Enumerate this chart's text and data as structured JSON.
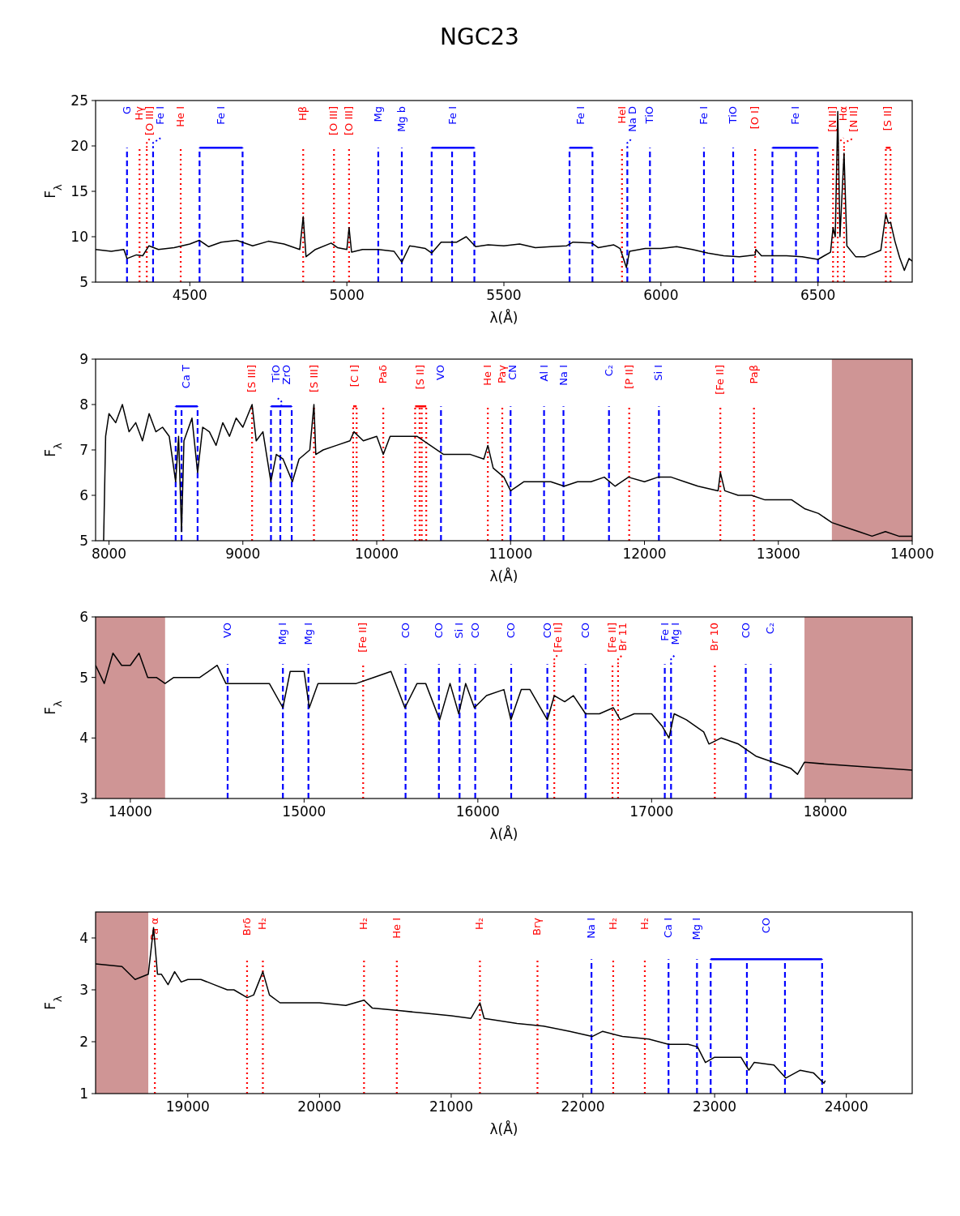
{
  "chart_data": [
    {
      "type": "line",
      "title": "NGC23",
      "xlabel": "λ(Å)",
      "ylabel": "F$_{λ}$",
      "xlim": [
        4200,
        6800
      ],
      "xticks": [
        4500,
        5000,
        5500,
        6000,
        6500
      ],
      "ylim": [
        5,
        25
      ],
      "yticks": [
        5,
        10,
        15,
        20,
        25
      ],
      "x": [
        4200,
        4250,
        4290,
        4300,
        4330,
        4350,
        4370,
        4400,
        4450,
        4500,
        4530,
        4560,
        4600,
        4650,
        4700,
        4750,
        4800,
        4850,
        4861,
        4870,
        4900,
        4950,
        4970,
        5000,
        5007,
        5015,
        5050,
        5100,
        5150,
        5175,
        5200,
        5250,
        5270,
        5300,
        5350,
        5380,
        5410,
        5450,
        5500,
        5550,
        5600,
        5650,
        5700,
        5720,
        5780,
        5800,
        5850,
        5870,
        5890,
        5900,
        5950,
        6000,
        6050,
        6100,
        6150,
        6200,
        6250,
        6300,
        6302,
        6320,
        6400,
        6450,
        6500,
        6520,
        6540,
        6548,
        6555,
        6563,
        6570,
        6583,
        6592,
        6620,
        6650,
        6700,
        6716,
        6724,
        6731,
        6745,
        6760,
        6775,
        6790,
        6800
      ],
      "series": [
        {
          "color": "#000000",
          "values": [
            8.6,
            8.4,
            8.6,
            7.6,
            8.0,
            7.9,
            9.0,
            8.6,
            8.8,
            9.2,
            9.6,
            8.9,
            9.4,
            9.6,
            9.0,
            9.5,
            9.2,
            8.6,
            12.2,
            7.8,
            8.6,
            9.3,
            8.8,
            8.6,
            11.0,
            8.3,
            8.6,
            8.6,
            8.4,
            7.2,
            9.0,
            8.7,
            8.2,
            9.4,
            9.4,
            10.0,
            8.9,
            9.1,
            9.0,
            9.2,
            8.8,
            8.9,
            9.0,
            9.4,
            9.3,
            8.8,
            9.1,
            8.7,
            6.6,
            8.4,
            8.7,
            8.7,
            8.9,
            8.6,
            8.2,
            7.9,
            7.8,
            8.0,
            8.6,
            7.9,
            7.9,
            7.8,
            7.5,
            7.9,
            8.3,
            11.0,
            10.0,
            23.8,
            10.0,
            19.2,
            9.0,
            7.8,
            7.8,
            8.5,
            12.5,
            11.5,
            11.6,
            9.5,
            7.7,
            6.3,
            7.6,
            7.3
          ]
        }
      ],
      "ref_lines": [
        {
          "axis": "x",
          "value": 4300,
          "label": "G",
          "color": "#0000ff",
          "line_style": "dashed"
        },
        {
          "axis": "x",
          "value": 4340,
          "label": "Hγ",
          "color": "#ff0000",
          "line_style": "dotted"
        },
        {
          "axis": "x",
          "value": 4363,
          "label": "[O III]",
          "color": "#ff0000",
          "line_style": "dotted"
        },
        {
          "axis": "x",
          "value": 4383,
          "label": "Fe I",
          "color": "#0000ff",
          "line_style": "dashed"
        },
        {
          "axis": "x",
          "value": 4471,
          "label": "He I",
          "color": "#ff0000",
          "line_style": "dotted"
        },
        {
          "axis": "x",
          "value": 4531,
          "label": "Fe I",
          "color": "#0000ff",
          "line_style": "dashed"
        },
        {
          "axis": "x",
          "value": 4668,
          "label": null,
          "color": "#0000ff",
          "line_style": "dashed"
        },
        {
          "axis": "x",
          "value": 4861,
          "label": "Hβ",
          "color": "#ff0000",
          "line_style": "dotted"
        },
        {
          "axis": "x",
          "value": 4959,
          "label": "[O III]",
          "color": "#ff0000",
          "line_style": "dotted"
        },
        {
          "axis": "x",
          "value": 5007,
          "label": "[O III]",
          "color": "#ff0000",
          "line_style": "dotted"
        },
        {
          "axis": "x",
          "value": 5100,
          "label": "Mg",
          "color": "#0000ff",
          "line_style": "dashed"
        },
        {
          "axis": "x",
          "value": 5175,
          "label": "Mg b",
          "color": "#0000ff",
          "line_style": "dashed"
        },
        {
          "axis": "x",
          "value": 5270,
          "label": "Fe I",
          "color": "#0000ff",
          "line_style": "dashed"
        },
        {
          "axis": "x",
          "value": 5335,
          "label": null,
          "color": "#0000ff",
          "line_style": "dashed"
        },
        {
          "axis": "x",
          "value": 5406,
          "label": null,
          "color": "#0000ff",
          "line_style": "dashed"
        },
        {
          "axis": "x",
          "value": 5709,
          "label": "Fe I",
          "color": "#0000ff",
          "line_style": "dashed"
        },
        {
          "axis": "x",
          "value": 5782,
          "label": null,
          "color": "#0000ff",
          "line_style": "dashed"
        },
        {
          "axis": "x",
          "value": 5876,
          "label": "HeI",
          "color": "#ff0000",
          "line_style": "dotted"
        },
        {
          "axis": "x",
          "value": 5893,
          "label": "Na D",
          "color": "#0000ff",
          "line_style": "dashed"
        },
        {
          "axis": "x",
          "value": 5965,
          "label": "TiO",
          "color": "#0000ff",
          "line_style": "dashed"
        },
        {
          "axis": "x",
          "value": 6137,
          "label": "Fe I",
          "color": "#0000ff",
          "line_style": "dashed"
        },
        {
          "axis": "x",
          "value": 6230,
          "label": "TiO",
          "color": "#0000ff",
          "line_style": "dashed"
        },
        {
          "axis": "x",
          "value": 6300,
          "label": "[O I]",
          "color": "#ff0000",
          "line_style": "dotted"
        },
        {
          "axis": "x",
          "value": 6355,
          "label": "Fe I",
          "color": "#0000ff",
          "line_style": "dashed"
        },
        {
          "axis": "x",
          "value": 6430,
          "label": null,
          "color": "#0000ff",
          "line_style": "dashed"
        },
        {
          "axis": "x",
          "value": 6500,
          "label": null,
          "color": "#0000ff",
          "line_style": "dashed"
        },
        {
          "axis": "x",
          "value": 6548,
          "label": "[N II]",
          "color": "#ff0000",
          "line_style": "dotted"
        },
        {
          "axis": "x",
          "value": 6563,
          "label": "Hα",
          "color": "#ff0000",
          "line_style": "dotted"
        },
        {
          "axis": "x",
          "value": 6583,
          "label": "[N II]",
          "color": "#ff0000",
          "line_style": "dotted"
        },
        {
          "axis": "x",
          "value": 6716,
          "label": "[S II]",
          "color": "#ff0000",
          "line_style": "dotted"
        },
        {
          "axis": "x",
          "value": 6731,
          "label": null,
          "color": "#ff0000",
          "line_style": "dotted"
        }
      ]
    },
    {
      "type": "line",
      "xlabel": "λ(Å)",
      "ylabel": "F$_{λ}$",
      "xlim": [
        7900,
        14000
      ],
      "xticks": [
        8000,
        9000,
        10000,
        11000,
        12000,
        13000,
        14000
      ],
      "ylim": [
        5,
        9
      ],
      "yticks": [
        5,
        6,
        7,
        8,
        9
      ],
      "x": [
        7960,
        7975,
        8000,
        8050,
        8100,
        8150,
        8200,
        8250,
        8300,
        8350,
        8400,
        8450,
        8498,
        8520,
        8542,
        8560,
        8620,
        8662,
        8700,
        8750,
        8800,
        8850,
        8900,
        8950,
        9000,
        9069,
        9100,
        9150,
        9209,
        9250,
        9300,
        9370,
        9420,
        9500,
        9531,
        9545,
        9600,
        9700,
        9800,
        9830,
        9900,
        10000,
        10049,
        10100,
        10200,
        10300,
        10400,
        10500,
        10600,
        10700,
        10800,
        10830,
        10870,
        10950,
        11000,
        11050,
        11100,
        11200,
        11300,
        11400,
        11500,
        11600,
        11700,
        11780,
        11880,
        12000,
        12100,
        12200,
        12300,
        12400,
        12550,
        12567,
        12600,
        12700,
        12800,
        12900,
        13000,
        13100,
        13200,
        13300,
        13400,
        13500,
        13600,
        13700,
        13800,
        13900,
        14000
      ],
      "series": [
        {
          "color": "#000000",
          "values": [
            5.0,
            7.3,
            7.8,
            7.6,
            8.0,
            7.4,
            7.6,
            7.2,
            7.8,
            7.4,
            7.5,
            7.3,
            6.3,
            7.3,
            5.2,
            7.2,
            7.7,
            6.5,
            7.5,
            7.4,
            7.1,
            7.6,
            7.3,
            7.7,
            7.5,
            8.0,
            7.2,
            7.4,
            6.3,
            6.9,
            6.8,
            6.3,
            6.8,
            7.0,
            8.0,
            6.9,
            7.0,
            7.1,
            7.2,
            7.4,
            7.2,
            7.3,
            6.9,
            7.3,
            7.3,
            7.3,
            7.1,
            6.9,
            6.9,
            6.9,
            6.8,
            7.1,
            6.6,
            6.4,
            6.1,
            6.2,
            6.3,
            6.3,
            6.3,
            6.2,
            6.3,
            6.3,
            6.4,
            6.2,
            6.4,
            6.3,
            6.4,
            6.4,
            6.3,
            6.2,
            6.1,
            6.5,
            6.1,
            6.0,
            6.0,
            5.9,
            5.9,
            5.9,
            5.7,
            5.6,
            5.4,
            5.3,
            5.2,
            5.1,
            5.2,
            5.1,
            5.1
          ]
        }
      ],
      "bands": [
        {
          "axis": "x",
          "from": 13400,
          "to": 14000,
          "color": "#cf9595"
        }
      ],
      "ref_lines": [
        {
          "axis": "x",
          "value": 8498,
          "label": "Ca T",
          "color": "#0000ff",
          "line_style": "dashed"
        },
        {
          "axis": "x",
          "value": 8542,
          "label": null,
          "color": "#0000ff",
          "line_style": "dashed"
        },
        {
          "axis": "x",
          "value": 8662,
          "label": null,
          "color": "#0000ff",
          "line_style": "dashed"
        },
        {
          "axis": "x",
          "value": 9069,
          "label": "[S III]",
          "color": "#ff0000",
          "line_style": "dotted"
        },
        {
          "axis": "x",
          "value": 9210,
          "label": "TiO\nZrO",
          "color": "#0000ff",
          "line_style": "dashed"
        },
        {
          "axis": "x",
          "value": 9280,
          "label": null,
          "color": "#0000ff",
          "line_style": "dashed"
        },
        {
          "axis": "x",
          "value": 9365,
          "label": null,
          "color": "#0000ff",
          "line_style": "dashed"
        },
        {
          "axis": "x",
          "value": 9531,
          "label": "[S III]",
          "color": "#ff0000",
          "line_style": "dotted"
        },
        {
          "axis": "x",
          "value": 9824,
          "label": "[C I]",
          "color": "#ff0000",
          "line_style": "dotted"
        },
        {
          "axis": "x",
          "value": 9850,
          "label": null,
          "color": "#ff0000",
          "line_style": "dotted"
        },
        {
          "axis": "x",
          "value": 10049,
          "label": "Paδ",
          "color": "#ff0000",
          "line_style": "dotted"
        },
        {
          "axis": "x",
          "value": 10287,
          "label": "[S II]",
          "color": "#ff0000",
          "line_style": "dotted"
        },
        {
          "axis": "x",
          "value": 10320,
          "label": null,
          "color": "#ff0000",
          "line_style": "dotted"
        },
        {
          "axis": "x",
          "value": 10336,
          "label": null,
          "color": "#ff0000",
          "line_style": "dotted"
        },
        {
          "axis": "x",
          "value": 10370,
          "label": null,
          "color": "#ff0000",
          "line_style": "dotted"
        },
        {
          "axis": "x",
          "value": 10480,
          "label": "VO",
          "color": "#0000ff",
          "line_style": "dashed"
        },
        {
          "axis": "x",
          "value": 10830,
          "label": "He I",
          "color": "#ff0000",
          "line_style": "dotted"
        },
        {
          "axis": "x",
          "value": 10938,
          "label": "Paγ",
          "color": "#ff0000",
          "line_style": "dotted"
        },
        {
          "axis": "x",
          "value": 11000,
          "label": "CN",
          "color": "#0000ff",
          "line_style": "dashed"
        },
        {
          "axis": "x",
          "value": 11250,
          "label": "Al I",
          "color": "#0000ff",
          "line_style": "dashed"
        },
        {
          "axis": "x",
          "value": 11395,
          "label": "Na I",
          "color": "#0000ff",
          "line_style": "dashed"
        },
        {
          "axis": "x",
          "value": 11735,
          "label": "C₂",
          "color": "#0000ff",
          "line_style": "dashed"
        },
        {
          "axis": "x",
          "value": 11886,
          "label": "[P II]",
          "color": "#ff0000",
          "line_style": "dotted"
        },
        {
          "axis": "x",
          "value": 12108,
          "label": "Si I",
          "color": "#0000ff",
          "line_style": "dashed"
        },
        {
          "axis": "x",
          "value": 12567,
          "label": "[Fe II]",
          "color": "#ff0000",
          "line_style": "dotted"
        },
        {
          "axis": "x",
          "value": 12818,
          "label": "Paβ",
          "color": "#ff0000",
          "line_style": "dotted"
        }
      ]
    },
    {
      "type": "line",
      "xlabel": "λ(Å)",
      "ylabel": "F$_{λ}$",
      "xlim": [
        13800,
        18500
      ],
      "xticks": [
        14000,
        15000,
        16000,
        17000,
        18000
      ],
      "ylim": [
        3,
        6
      ],
      "yticks": [
        3,
        4,
        5,
        6
      ],
      "x": [
        13800,
        13850,
        13900,
        13950,
        14000,
        14050,
        14100,
        14150,
        14200,
        14250,
        14300,
        14400,
        14500,
        14550,
        14600,
        14700,
        14800,
        14878,
        14920,
        15000,
        15030,
        15080,
        15200,
        15300,
        15400,
        15500,
        15580,
        15650,
        15700,
        15780,
        15840,
        15890,
        15930,
        15980,
        16050,
        16150,
        16190,
        16250,
        16300,
        16400,
        16440,
        16500,
        16550,
        16620,
        16700,
        16780,
        16820,
        16900,
        17000,
        17060,
        17100,
        17130,
        17200,
        17300,
        17330,
        17400,
        17500,
        17600,
        17700,
        17800,
        17840,
        17880,
        18000,
        18200,
        18500
      ],
      "series": [
        {
          "color": "#000000",
          "values": [
            5.2,
            4.9,
            5.4,
            5.2,
            5.2,
            5.4,
            5.0,
            5.0,
            4.9,
            5.0,
            5.0,
            5.0,
            5.2,
            4.9,
            4.9,
            4.9,
            4.9,
            4.5,
            5.1,
            5.1,
            4.5,
            4.9,
            4.9,
            4.9,
            5.0,
            5.1,
            4.5,
            4.9,
            4.9,
            4.3,
            4.9,
            4.4,
            4.9,
            4.5,
            4.7,
            4.8,
            4.3,
            4.8,
            4.8,
            4.3,
            4.7,
            4.6,
            4.7,
            4.4,
            4.4,
            4.5,
            4.3,
            4.4,
            4.4,
            4.2,
            4.0,
            4.4,
            4.3,
            4.1,
            3.9,
            4.0,
            3.9,
            3.7,
            3.6,
            3.5,
            3.4,
            3.6,
            3.57,
            3.53,
            3.47
          ]
        }
      ],
      "bands": [
        {
          "axis": "x",
          "from": 13800,
          "to": 14200,
          "color": "#cf9595"
        },
        {
          "axis": "x",
          "from": 17880,
          "to": 18500,
          "color": "#cf9595"
        }
      ],
      "ref_lines": [
        {
          "axis": "x",
          "value": 14560,
          "label": "VO",
          "color": "#0000ff",
          "line_style": "dashed"
        },
        {
          "axis": "x",
          "value": 14878,
          "label": "Mg I",
          "color": "#0000ff",
          "line_style": "dashed"
        },
        {
          "axis": "x",
          "value": 15025,
          "label": "Mg I",
          "color": "#0000ff",
          "line_style": "dashed"
        },
        {
          "axis": "x",
          "value": 15340,
          "label": "[Fe II]",
          "color": "#ff0000",
          "line_style": "dotted"
        },
        {
          "axis": "x",
          "value": 15584,
          "label": "CO",
          "color": "#0000ff",
          "line_style": "dashed"
        },
        {
          "axis": "x",
          "value": 15776,
          "label": "CO",
          "color": "#0000ff",
          "line_style": "dashed"
        },
        {
          "axis": "x",
          "value": 15895,
          "label": "Si I",
          "color": "#0000ff",
          "line_style": "dashed"
        },
        {
          "axis": "x",
          "value": 15985,
          "label": "CO",
          "color": "#0000ff",
          "line_style": "dashed"
        },
        {
          "axis": "x",
          "value": 16192,
          "label": "CO",
          "color": "#0000ff",
          "line_style": "dashed"
        },
        {
          "axis": "x",
          "value": 16400,
          "label": "CO",
          "color": "#0000ff",
          "line_style": "dashed"
        },
        {
          "axis": "x",
          "value": 16440,
          "label": "[Fe II]",
          "color": "#ff0000",
          "line_style": "dotted"
        },
        {
          "axis": "x",
          "value": 16620,
          "label": "CO",
          "color": "#0000ff",
          "line_style": "dashed"
        },
        {
          "axis": "x",
          "value": 16775,
          "label": "[Fe II]",
          "color": "#ff0000",
          "line_style": "dotted"
        },
        {
          "axis": "x",
          "value": 16807,
          "label": "Br 11",
          "color": "#ff0000",
          "line_style": "dotted"
        },
        {
          "axis": "x",
          "value": 17076,
          "label": "Fe I",
          "color": "#0000ff",
          "line_style": "dashed"
        },
        {
          "axis": "x",
          "value": 17112,
          "label": "Mg I",
          "color": "#0000ff",
          "line_style": "dashed"
        },
        {
          "axis": "x",
          "value": 17364,
          "label": "Br 10",
          "color": "#ff0000",
          "line_style": "dotted"
        },
        {
          "axis": "x",
          "value": 17542,
          "label": "CO",
          "color": "#0000ff",
          "line_style": "dashed"
        },
        {
          "axis": "x",
          "value": 17686,
          "label": "C₂",
          "color": "#0000ff",
          "line_style": "dashed"
        }
      ]
    },
    {
      "type": "line",
      "xlabel": "λ(Å)",
      "ylabel": "F$_{λ}$",
      "xlim": [
        18300,
        24500
      ],
      "xticks": [
        19000,
        20000,
        21000,
        22000,
        23000,
        24000
      ],
      "ylim": [
        1,
        4.5
      ],
      "yticks": [
        1,
        2,
        3,
        4
      ],
      "x": [
        18300,
        18500,
        18600,
        18700,
        18740,
        18770,
        18800,
        18850,
        18900,
        18950,
        19000,
        19100,
        19200,
        19300,
        19350,
        19451,
        19500,
        19570,
        19620,
        19700,
        19800,
        20000,
        20200,
        20338,
        20400,
        20600,
        20800,
        21000,
        21150,
        21218,
        21250,
        21500,
        21700,
        21900,
        22070,
        22150,
        22300,
        22500,
        22650,
        22800,
        22870,
        22930,
        23000,
        23200,
        23260,
        23300,
        23450,
        23540,
        23650,
        23750,
        23830,
        23840
      ],
      "series": [
        {
          "color": "#000000",
          "values": [
            3.5,
            3.45,
            3.2,
            3.3,
            4.2,
            3.3,
            3.3,
            3.1,
            3.35,
            3.15,
            3.2,
            3.2,
            3.1,
            3.0,
            3.0,
            2.85,
            2.9,
            3.35,
            2.9,
            2.75,
            2.75,
            2.75,
            2.7,
            2.8,
            2.65,
            2.6,
            2.55,
            2.5,
            2.45,
            2.75,
            2.45,
            2.35,
            2.3,
            2.2,
            2.1,
            2.2,
            2.1,
            2.05,
            1.95,
            1.95,
            1.9,
            1.6,
            1.7,
            1.7,
            1.45,
            1.6,
            1.55,
            1.3,
            1.45,
            1.4,
            1.2,
            1.25
          ]
        }
      ],
      "bands": [
        {
          "axis": "x",
          "from": 18300,
          "to": 18700,
          "color": "#cf9595"
        }
      ],
      "ref_lines": [
        {
          "axis": "x",
          "value": 18750,
          "label": "Pa α",
          "color": "#ff0000",
          "line_style": "dotted"
        },
        {
          "axis": "x",
          "value": 19450,
          "label": "Brδ",
          "color": "#ff0000",
          "line_style": "dotted"
        },
        {
          "axis": "x",
          "value": 19570,
          "label": "H₂",
          "color": "#ff0000",
          "line_style": "dotted"
        },
        {
          "axis": "x",
          "value": 20338,
          "label": "H₂",
          "color": "#ff0000",
          "line_style": "dotted"
        },
        {
          "axis": "x",
          "value": 20587,
          "label": "He I",
          "color": "#ff0000",
          "line_style": "dotted"
        },
        {
          "axis": "x",
          "value": 21218,
          "label": "H₂",
          "color": "#ff0000",
          "line_style": "dotted"
        },
        {
          "axis": "x",
          "value": 21655,
          "label": "Brγ",
          "color": "#ff0000",
          "line_style": "dotted"
        },
        {
          "axis": "x",
          "value": 22065,
          "label": "Na I",
          "color": "#0000ff",
          "line_style": "dashed"
        },
        {
          "axis": "x",
          "value": 22230,
          "label": "H₂",
          "color": "#ff0000",
          "line_style": "dotted"
        },
        {
          "axis": "x",
          "value": 22470,
          "label": "H₂",
          "color": "#ff0000",
          "line_style": "dotted"
        },
        {
          "axis": "x",
          "value": 22650,
          "label": "Ca I",
          "color": "#0000ff",
          "line_style": "dashed"
        },
        {
          "axis": "x",
          "value": 22866,
          "label": "Mg I",
          "color": "#0000ff",
          "line_style": "dashed"
        },
        {
          "axis": "x",
          "value": 22970,
          "label": "CO",
          "color": "#0000ff",
          "line_style": "dashed"
        },
        {
          "axis": "x",
          "value": 23245,
          "label": null,
          "color": "#0000ff",
          "line_style": "dashed"
        },
        {
          "axis": "x",
          "value": 23534,
          "label": null,
          "color": "#0000ff",
          "line_style": "dashed"
        },
        {
          "axis": "x",
          "value": 23816,
          "label": null,
          "color": "#0000ff",
          "line_style": "dashed"
        }
      ]
    }
  ]
}
